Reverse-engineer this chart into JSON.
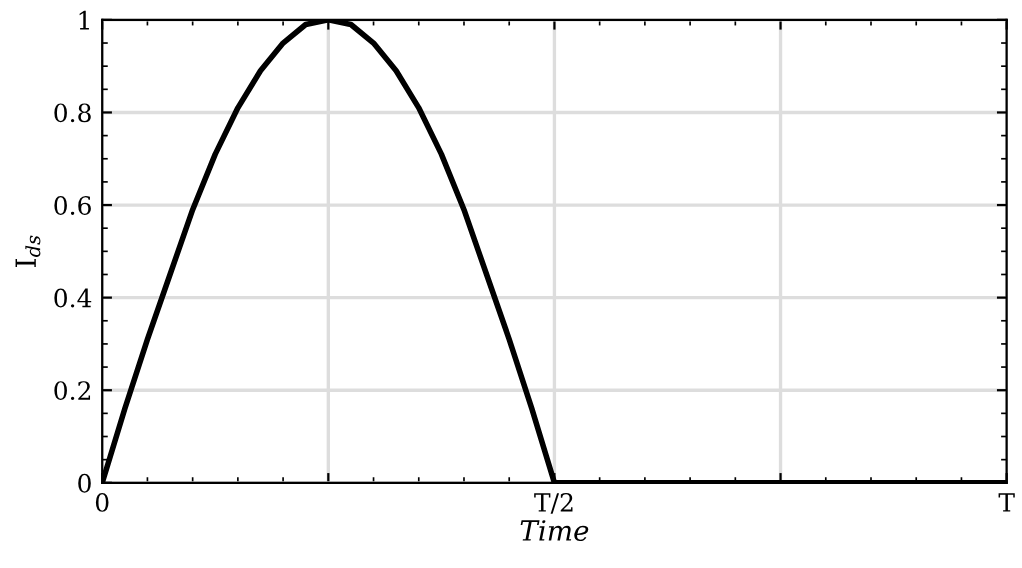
{
  "chart_data": {
    "type": "line",
    "xlabel": "Time",
    "ylabel": "I$_{ds}$",
    "categories": [
      "0",
      null,
      null,
      null,
      null,
      null,
      null,
      null,
      null,
      null,
      null,
      null,
      null,
      null,
      null,
      null,
      null,
      null,
      null,
      null,
      "T/2",
      null,
      null,
      null,
      null,
      null,
      null,
      null,
      null,
      null,
      null,
      null,
      null,
      null,
      null,
      null,
      null,
      null,
      null,
      null,
      "T"
    ],
    "series": [
      {
        "color": "#000000",
        "values": [
          0,
          0.16,
          0.31,
          0.45,
          0.59,
          0.71,
          0.81,
          0.89,
          0.95,
          0.99,
          1,
          0.99,
          0.95,
          0.89,
          0.81,
          0.71,
          0.59,
          0.45,
          0.31,
          0.16,
          0,
          0,
          0,
          0,
          0,
          0,
          0,
          0,
          0,
          0,
          0,
          0,
          0,
          0,
          0,
          0,
          0,
          0,
          0,
          0,
          0
        ]
      }
    ],
    "ylim": [
      0,
      1
    ],
    "yticks": [
      0,
      0.2,
      0.4,
      0.6,
      0.8,
      1
    ],
    "grid": true,
    "legend": false,
    "marker": "none",
    "line_style": "solid"
  }
}
